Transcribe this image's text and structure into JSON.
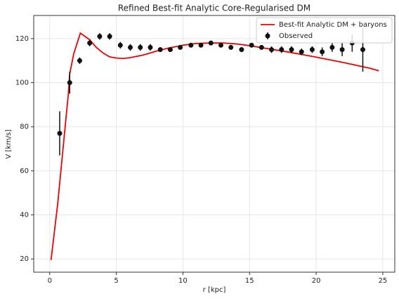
{
  "chart_data": {
    "type": "line_errorbar",
    "title": "Refined Best-fit Analytic Core-Regularised DM",
    "x_label": "r [kpc]",
    "y_label": "V [km/s]",
    "xlim": [
      -1.2,
      25.9
    ],
    "ylim": [
      14,
      130.5
    ],
    "xticks": [
      0,
      5,
      10,
      15,
      20,
      25
    ],
    "yticks": [
      20,
      40,
      60,
      80,
      100,
      120
    ],
    "grid": true,
    "legend": "upper right",
    "series": [
      {
        "name": "Best-fit Analytic DM + baryons",
        "type": "line",
        "color": "#ee0000",
        "x": [
          0.1,
          0.6,
          1.0,
          1.4,
          1.5,
          1.8,
          2.3,
          3.0,
          3.5,
          4.0,
          4.5,
          5.0,
          5.5,
          6.0,
          7.0,
          8.0,
          9.0,
          10,
          11,
          12,
          13,
          14,
          15,
          16,
          17,
          18,
          19,
          20,
          21,
          22,
          23,
          24,
          24.7
        ],
        "values": [
          19.5,
          45,
          70,
          95,
          104,
          113,
          122.5,
          119.5,
          116,
          113.5,
          111.7,
          111.2,
          111,
          111.3,
          112.5,
          114.3,
          115.8,
          117,
          117.8,
          118,
          118,
          117.6,
          116.8,
          115.8,
          114.8,
          113.8,
          112.7,
          111.6,
          110.4,
          109.2,
          107.9,
          106.6,
          105.4
        ]
      },
      {
        "name": "Observed",
        "type": "errorbar",
        "color": "#111111",
        "x": [
          0.75,
          1.5,
          2.25,
          3.0,
          3.75,
          4.5,
          5.3,
          6.05,
          6.8,
          7.55,
          8.3,
          9.05,
          9.8,
          10.6,
          11.35,
          12.1,
          12.85,
          13.6,
          14.4,
          15.15,
          15.9,
          16.65,
          17.4,
          18.15,
          18.9,
          19.7,
          20.45,
          21.2,
          21.95,
          22.7,
          23.5
        ],
        "values": [
          77,
          100,
          110,
          118,
          121,
          121,
          117,
          116,
          116,
          116,
          115,
          115,
          116,
          117,
          117,
          118,
          117,
          116,
          115,
          117,
          116,
          115,
          115,
          115,
          114,
          115,
          114,
          116,
          115,
          118,
          115
        ],
        "errors": [
          10,
          5,
          1.5,
          1.5,
          1.5,
          1.5,
          1.5,
          1.5,
          1.5,
          1.5,
          1,
          1,
          1,
          1,
          1,
          1,
          1,
          1,
          1,
          1,
          1,
          1.5,
          1.5,
          1.5,
          1.5,
          1.5,
          2,
          2,
          3,
          4,
          10
        ]
      }
    ]
  }
}
